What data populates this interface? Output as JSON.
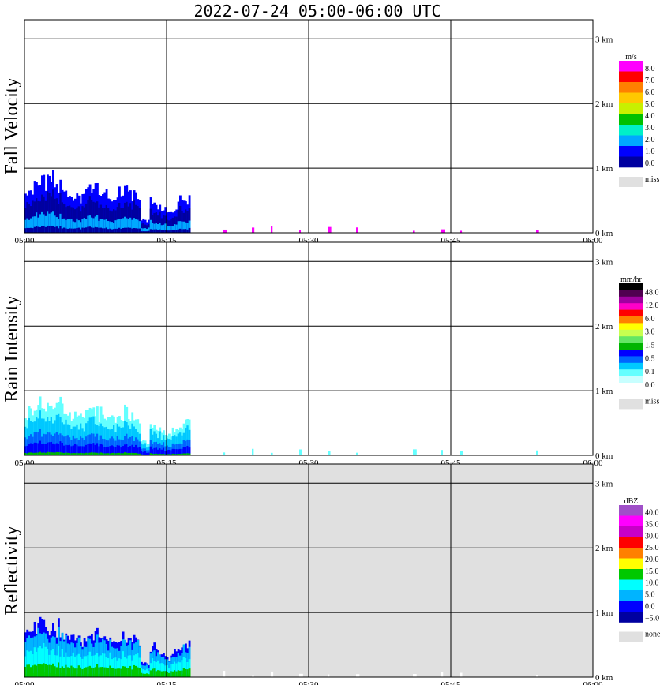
{
  "title": "2022-07-24   05:00-06:00 UTC",
  "x_ticks": [
    "05:00",
    "05:15",
    "05:30",
    "05:45",
    "06:00"
  ],
  "y_ticks": [
    "0 km",
    "1 km",
    "2 km",
    "3 km"
  ],
  "chart_data": [
    {
      "type": "heatmap",
      "ylabel": "Fall Velocity",
      "xlim": [
        "05:00",
        "06:00"
      ],
      "ylim_km": [
        0,
        3.15
      ],
      "grid": true,
      "background": "#ffffff",
      "colorbar": {
        "unit": "m/s",
        "labels": [
          "8.0",
          "7.0",
          "6.0",
          "5.0",
          "4.0",
          "3.0",
          "2.0",
          "1.0",
          "0.0"
        ],
        "colors": [
          "#ff00ff",
          "#ff0000",
          "#ff8000",
          "#ffc800",
          "#c8f000",
          "#00c000",
          "#00f0c8",
          "#00a8ff",
          "#0000ff",
          "#0000a0"
        ],
        "missing_label": "miss",
        "missing_color": "#e0e0e0"
      },
      "echo_top_km": [
        0.6,
        0.78,
        0.82,
        0.74,
        0.63,
        0.57,
        0.68,
        0.62,
        0.55,
        0.64,
        0.58,
        0.49,
        0.44,
        0.3,
        0.48,
        0.5
      ],
      "echo_start": "05:00",
      "echo_end": "05:17:30",
      "sparse_returns": [
        "05:21",
        "05:24",
        "05:26",
        "05:29",
        "05:32",
        "05:35",
        "05:41",
        "05:44",
        "05:46",
        "05:54"
      ]
    },
    {
      "type": "heatmap",
      "ylabel": "Rain Intensity",
      "xlim": [
        "05:00",
        "06:00"
      ],
      "ylim_km": [
        0,
        3.15
      ],
      "grid": true,
      "background": "#ffffff",
      "colorbar": {
        "unit": "mm/hr",
        "labels": [
          "48.0",
          "12.0",
          "6.0",
          "3.0",
          "1.5",
          "0.5",
          "0.1",
          "0.0"
        ],
        "colors": [
          "#000000",
          "#500050",
          "#a000a0",
          "#ff00c8",
          "#ff0000",
          "#ff8000",
          "#ffff00",
          "#c8ff50",
          "#64e664",
          "#00b400",
          "#0000ff",
          "#0064ff",
          "#00c8ff",
          "#64ffff",
          "#c8ffff",
          "#ffffff"
        ],
        "missing_label": "miss",
        "missing_color": "#e0e0e0"
      },
      "echo_top_km": [
        0.6,
        0.78,
        0.82,
        0.74,
        0.63,
        0.57,
        0.68,
        0.62,
        0.55,
        0.64,
        0.58,
        0.49,
        0.44,
        0.3,
        0.48,
        0.5
      ],
      "echo_start": "05:00",
      "echo_end": "05:17:30",
      "sparse_returns": [
        "05:21",
        "05:24",
        "05:26",
        "05:29",
        "05:32",
        "05:35",
        "05:41",
        "05:44",
        "05:46",
        "05:54"
      ]
    },
    {
      "type": "heatmap",
      "ylabel": "Reflectivity",
      "xlim": [
        "05:00",
        "06:00"
      ],
      "ylim_km": [
        0,
        3.15
      ],
      "grid": true,
      "background": "#e0e0e0",
      "colorbar": {
        "unit": "dBZ",
        "labels": [
          "40.0",
          "35.0",
          "30.0",
          "25.0",
          "20.0",
          "15.0",
          "10.0",
          "5.0",
          "0.0",
          "−5.0"
        ],
        "colors": [
          "#a050c8",
          "#ff00ff",
          "#c800c8",
          "#ff0000",
          "#ff8000",
          "#ffff00",
          "#00c800",
          "#00ffff",
          "#00b4ff",
          "#0000ff",
          "#0000a0"
        ],
        "missing_label": "none",
        "missing_color": "#e0e0e0"
      },
      "echo_top_km": [
        0.6,
        0.78,
        0.82,
        0.74,
        0.63,
        0.57,
        0.68,
        0.62,
        0.55,
        0.64,
        0.58,
        0.49,
        0.44,
        0.3,
        0.48,
        0.5
      ],
      "echo_start": "05:00",
      "echo_end": "05:17:30",
      "sparse_returns": [
        "05:21",
        "05:24",
        "05:26",
        "05:29",
        "05:32",
        "05:35",
        "05:41",
        "05:44",
        "05:46",
        "05:54"
      ]
    }
  ]
}
